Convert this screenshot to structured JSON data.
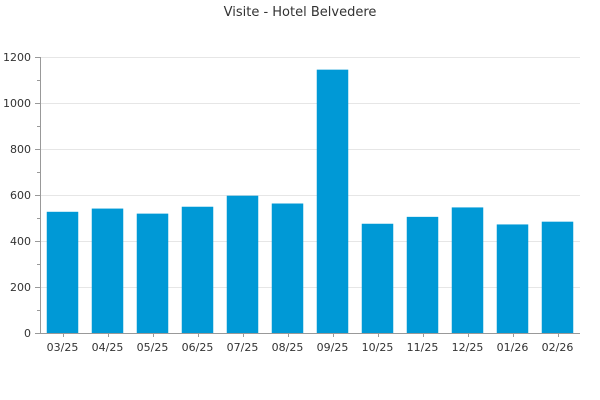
{
  "chart_data": {
    "type": "bar",
    "title": "Visite - Hotel Belvedere",
    "xlabel": "",
    "ylabel": "",
    "categories": [
      "03/25",
      "04/25",
      "05/25",
      "06/25",
      "07/25",
      "08/25",
      "09/25",
      "10/25",
      "11/25",
      "12/25",
      "01/26",
      "02/26"
    ],
    "values": [
      527,
      541,
      519,
      549,
      597,
      563,
      1145,
      475,
      505,
      546,
      472,
      484
    ],
    "ylim": [
      0,
      1200
    ],
    "yticks": [
      0,
      200,
      400,
      600,
      800,
      1000,
      1200
    ],
    "grid": true,
    "bar_color": "#0099d6",
    "gridline_color": "#e6e6e6",
    "axis_color": "#999999"
  }
}
